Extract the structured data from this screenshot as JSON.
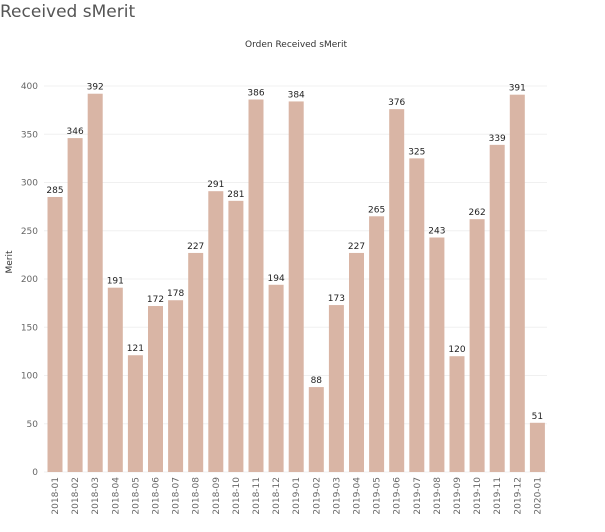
{
  "page": {
    "title": "Received sMerit"
  },
  "chart_data": {
    "type": "bar",
    "title": "Orden Received sMerit",
    "xlabel": "",
    "ylabel": "Merit",
    "ylim": [
      0,
      400
    ],
    "yticks": [
      0,
      50,
      100,
      150,
      200,
      250,
      300,
      350,
      400
    ],
    "grid": true,
    "color": "#d9b5a5",
    "categories": [
      "2018-01",
      "2018-02",
      "2018-03",
      "2018-04",
      "2018-05",
      "2018-06",
      "2018-07",
      "2018-08",
      "2018-09",
      "2018-10",
      "2018-11",
      "2018-12",
      "2019-01",
      "2019-02",
      "2019-03",
      "2019-04",
      "2019-05",
      "2019-06",
      "2019-07",
      "2019-08",
      "2019-09",
      "2019-10",
      "2019-11",
      "2019-12",
      "2020-01"
    ],
    "values": [
      285,
      346,
      392,
      191,
      121,
      172,
      178,
      227,
      291,
      281,
      386,
      194,
      384,
      88,
      173,
      227,
      265,
      376,
      325,
      243,
      120,
      262,
      339,
      391,
      51
    ]
  }
}
